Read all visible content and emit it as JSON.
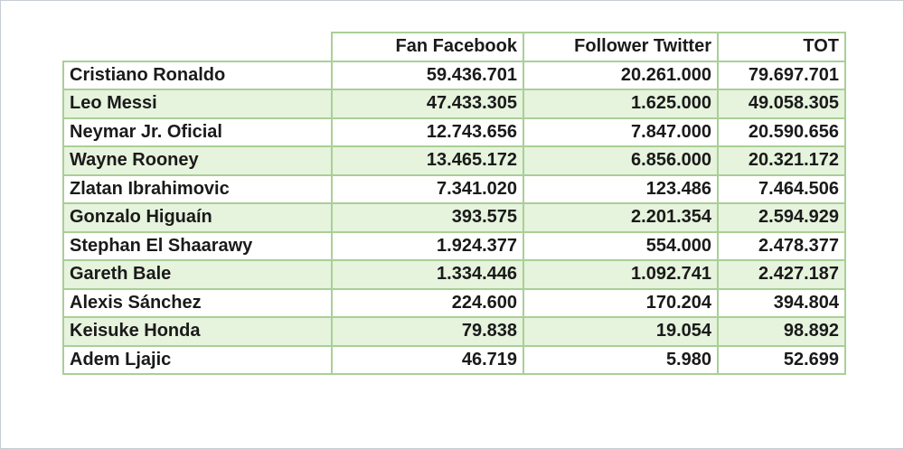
{
  "columns": {
    "facebook": "Fan Facebook",
    "twitter": "Follower Twitter",
    "total": "TOT"
  },
  "rows": [
    {
      "name": "Cristiano Ronaldo",
      "facebook": "59.436.701",
      "twitter": "20.261.000",
      "total": "79.697.701"
    },
    {
      "name": "Leo Messi",
      "facebook": "47.433.305",
      "twitter": "1.625.000",
      "total": "49.058.305"
    },
    {
      "name": "Neymar Jr. Oficial",
      "facebook": "12.743.656",
      "twitter": "7.847.000",
      "total": "20.590.656"
    },
    {
      "name": "Wayne Rooney",
      "facebook": "13.465.172",
      "twitter": "6.856.000",
      "total": "20.321.172"
    },
    {
      "name": "Zlatan Ibrahimovic",
      "facebook": "7.341.020",
      "twitter": "123.486",
      "total": "7.464.506"
    },
    {
      "name": "Gonzalo Higuaín",
      "facebook": "393.575",
      "twitter": "2.201.354",
      "total": "2.594.929"
    },
    {
      "name": "Stephan El Shaarawy",
      "facebook": "1.924.377",
      "twitter": "554.000",
      "total": "2.478.377"
    },
    {
      "name": "Gareth Bale",
      "facebook": "1.334.446",
      "twitter": "1.092.741",
      "total": "2.427.187"
    },
    {
      "name": "Alexis Sánchez",
      "facebook": "224.600",
      "twitter": "170.204",
      "total": "394.804"
    },
    {
      "name": "Keisuke Honda",
      "facebook": "79.838",
      "twitter": "19.054",
      "total": "98.892"
    },
    {
      "name": "Adem Ljajic",
      "facebook": "46.719",
      "twitter": "5.980",
      "total": "52.699"
    }
  ],
  "colors": {
    "border": "#a9cf96",
    "row_alt_background": "#e6f3dd",
    "text": "#1a1a1a"
  }
}
